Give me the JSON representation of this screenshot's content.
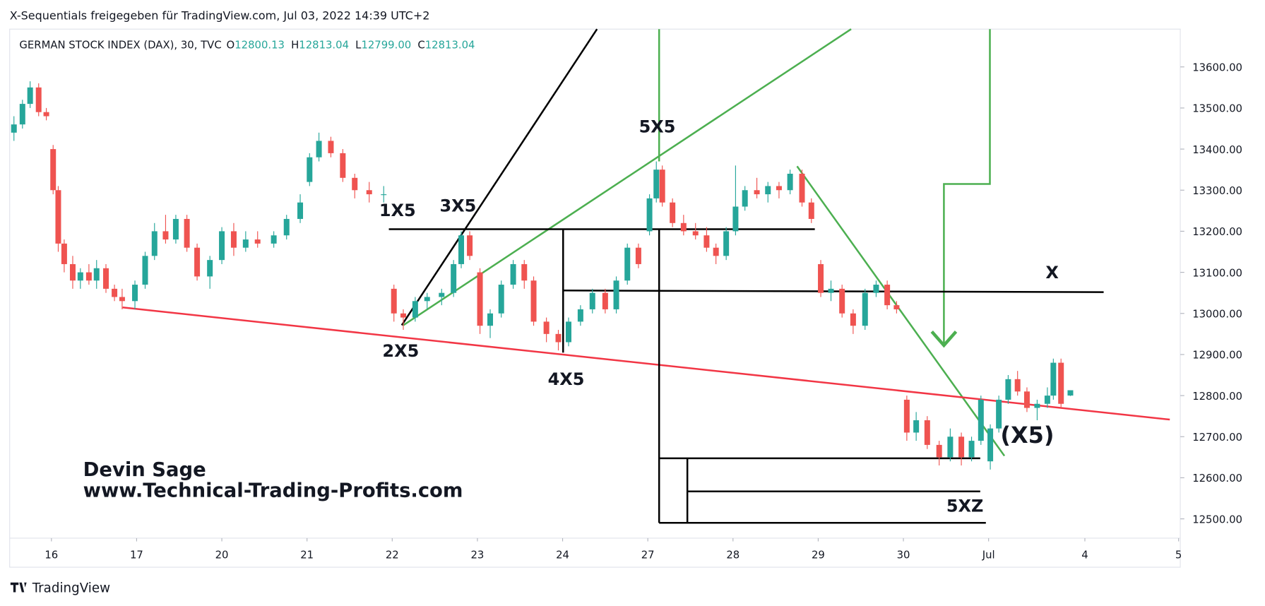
{
  "header": "X-Sequentials freigegeben für TradingView.com, Jul 03, 2022 14:39 UTC+2",
  "watermark": "TradingView",
  "chart_data": {
    "type": "candlestick",
    "title": "GERMAN STOCK INDEX (DAX), 30, TVC",
    "ohlc_legend": [
      {
        "key": "O",
        "label": "12800.13"
      },
      {
        "key": "H",
        "label": "12813.04"
      },
      {
        "key": "L",
        "label": "12799.00"
      },
      {
        "key": "C",
        "label": "12813.04"
      }
    ],
    "up_color": "#26a69a",
    "down_color": "#ef5350",
    "xlim": [
      -0.49,
      13.25
    ],
    "xticks": [
      {
        "value": 0,
        "label": "16"
      },
      {
        "value": 1,
        "label": "17"
      },
      {
        "value": 2,
        "label": "20"
      },
      {
        "value": 3,
        "label": "21"
      },
      {
        "value": 4,
        "label": "22"
      },
      {
        "value": 5,
        "label": "23"
      },
      {
        "value": 6,
        "label": "24"
      },
      {
        "value": 7,
        "label": "27"
      },
      {
        "value": 8,
        "label": "28"
      },
      {
        "value": 9,
        "label": "29"
      },
      {
        "value": 10,
        "label": "30"
      },
      {
        "value": 11,
        "label": "Jul"
      },
      {
        "value": 12.13,
        "label": "4"
      },
      {
        "value": 13.23,
        "label": "5"
      }
    ],
    "ylim": [
      12453,
      13692
    ],
    "yticks": [
      {
        "value": 12500,
        "label": "12500.00"
      },
      {
        "value": 12600,
        "label": "12600.00"
      },
      {
        "value": 12700,
        "label": "12700.00"
      },
      {
        "value": 12800,
        "label": "12800.00"
      },
      {
        "value": 12900,
        "label": "12900.00"
      },
      {
        "value": 13000,
        "label": "13000.00"
      },
      {
        "value": 13100,
        "label": "13100.00"
      },
      {
        "value": 13200,
        "label": "13200.00"
      },
      {
        "value": 13300,
        "label": "13300.00"
      },
      {
        "value": 13400,
        "label": "13400.00"
      },
      {
        "value": 13500,
        "label": "13500.00"
      },
      {
        "value": 13600,
        "label": "13600.00"
      }
    ],
    "x": [
      -0.44,
      -0.34,
      -0.25,
      -0.15,
      -0.06,
      0.02,
      0.08,
      0.15,
      0.25,
      0.34,
      0.44,
      0.53,
      0.64,
      0.74,
      0.83,
      0.98,
      1.1,
      1.21,
      1.34,
      1.46,
      1.59,
      1.71,
      1.86,
      2.0,
      2.14,
      2.28,
      2.42,
      2.61,
      2.76,
      2.92,
      3.03,
      3.14,
      3.28,
      3.42,
      3.56,
      3.73,
      3.9,
      4.02,
      4.13,
      4.27,
      4.41,
      4.58,
      4.72,
      4.81,
      4.91,
      5.03,
      5.15,
      5.28,
      5.42,
      5.55,
      5.66,
      5.81,
      5.95,
      6.07,
      6.21,
      6.35,
      6.5,
      6.63,
      6.76,
      6.89,
      7.02,
      7.1,
      7.17,
      7.29,
      7.42,
      7.56,
      7.69,
      7.8,
      7.92,
      8.03,
      8.14,
      8.28,
      8.41,
      8.54,
      8.67,
      8.81,
      8.92,
      9.03,
      9.15,
      9.28,
      9.41,
      9.55,
      9.68,
      9.81,
      9.92,
      10.04,
      10.15,
      10.28,
      10.42,
      10.55,
      10.68,
      10.8,
      10.91,
      11.02,
      11.12,
      11.23,
      11.34,
      11.45,
      11.57,
      11.69,
      11.76,
      11.85,
      11.96
    ],
    "open": [
      13440,
      13460,
      13510,
      13550,
      13490,
      13400,
      13300,
      13170,
      13120,
      13080,
      13100,
      13080,
      13110,
      13060,
      13040,
      13030,
      13070,
      13140,
      13200,
      13180,
      13230,
      13160,
      13090,
      13130,
      13200,
      13160,
      13180,
      13170,
      13190,
      13230,
      13320,
      13380,
      13420,
      13390,
      13330,
      13300,
      13290,
      13060,
      13000,
      12990,
      13030,
      13040,
      13050,
      13120,
      13190,
      13100,
      12970,
      13000,
      13070,
      13120,
      13080,
      12980,
      12950,
      12930,
      12980,
      13010,
      13050,
      13010,
      13080,
      13160,
      13200,
      13280,
      13350,
      13270,
      13220,
      13200,
      13190,
      13160,
      13140,
      13200,
      13260,
      13300,
      13290,
      13310,
      13300,
      13340,
      13270,
      13120,
      13050,
      13060,
      13000,
      12970,
      13050,
      13070,
      13020,
      12790,
      12710,
      12740,
      12680,
      12650,
      12700,
      12650,
      12690,
      12640,
      12720,
      12790,
      12840,
      12810,
      12770,
      12780,
      12800,
      12880,
      12800.13
    ],
    "high": [
      13480,
      13520,
      13565,
      13560,
      13500,
      13410,
      13310,
      13180,
      13140,
      13110,
      13120,
      13130,
      13120,
      13070,
      13060,
      13080,
      13150,
      13220,
      13240,
      13240,
      13240,
      13170,
      13140,
      13210,
      13220,
      13200,
      13200,
      13200,
      13240,
      13290,
      13390,
      13440,
      13430,
      13400,
      13340,
      13320,
      13310,
      13070,
      13010,
      13040,
      13050,
      13060,
      13130,
      13200,
      13200,
      13110,
      13010,
      13080,
      13130,
      13130,
      13090,
      12990,
      12960,
      12990,
      13020,
      13060,
      13060,
      13090,
      13170,
      13170,
      13290,
      13370,
      13360,
      13280,
      13240,
      13220,
      13210,
      13170,
      13210,
      13360,
      13310,
      13330,
      13320,
      13320,
      13350,
      13350,
      13280,
      13130,
      13080,
      13070,
      13010,
      13060,
      13080,
      13080,
      13030,
      12800,
      12760,
      12750,
      12690,
      12720,
      12710,
      12700,
      12800,
      12730,
      12800,
      12850,
      12860,
      12820,
      12790,
      12820,
      12890,
      12890,
      12813.04
    ],
    "low": [
      13420,
      13450,
      13500,
      13480,
      13470,
      13290,
      13150,
      13100,
      13060,
      13060,
      13070,
      13060,
      13050,
      13030,
      13010,
      13010,
      13060,
      13130,
      13170,
      13170,
      13150,
      13080,
      13060,
      13120,
      13140,
      13150,
      13160,
      13160,
      13180,
      13220,
      13310,
      13370,
      13380,
      13320,
      13280,
      13270,
      13270,
      12980,
      12960,
      12980,
      13010,
      13020,
      13040,
      13110,
      13130,
      12950,
      12940,
      12990,
      13060,
      13060,
      12970,
      12930,
      12910,
      12920,
      12970,
      13000,
      13000,
      13000,
      13070,
      13110,
      13190,
      13270,
      13260,
      13210,
      13190,
      13180,
      13150,
      13120,
      13130,
      13190,
      13250,
      13280,
      13270,
      13280,
      13290,
      13260,
      13220,
      13040,
      13030,
      12990,
      12950,
      12960,
      13040,
      13010,
      13000,
      12690,
      12690,
      12670,
      12630,
      12640,
      12630,
      12640,
      12680,
      12620,
      12710,
      12780,
      12800,
      12760,
      12740,
      12770,
      12790,
      12770,
      12799
    ],
    "close": [
      13460,
      13510,
      13550,
      13490,
      13480,
      13300,
      13170,
      13120,
      13080,
      13100,
      13080,
      13110,
      13060,
      13040,
      13030,
      13070,
      13140,
      13200,
      13180,
      13230,
      13160,
      13090,
      13130,
      13200,
      13160,
      13180,
      13170,
      13190,
      13230,
      13270,
      13380,
      13420,
      13390,
      13330,
      13300,
      13290,
      13290,
      13000,
      12990,
      13030,
      13040,
      13050,
      13120,
      13190,
      13140,
      12970,
      13000,
      13070,
      13120,
      13080,
      12980,
      12950,
      12930,
      12980,
      13010,
      13050,
      13010,
      13080,
      13160,
      13120,
      13280,
      13350,
      13270,
      13220,
      13200,
      13190,
      13160,
      13140,
      13200,
      13260,
      13300,
      13290,
      13310,
      13300,
      13340,
      13270,
      13230,
      13050,
      13060,
      13000,
      12970,
      13050,
      13070,
      13020,
      13010,
      12710,
      12740,
      12680,
      12650,
      12700,
      12650,
      12690,
      12790,
      12720,
      12790,
      12840,
      12810,
      12770,
      12780,
      12800,
      12880,
      12780,
      12813.04
    ],
    "annotations": [
      "1X5",
      "3X5",
      "2X5",
      "4X5",
      "5X5",
      "X",
      "(X5)",
      "5XZ",
      "Devin Sage",
      "www.Technical-Trading-Profits.com"
    ]
  }
}
